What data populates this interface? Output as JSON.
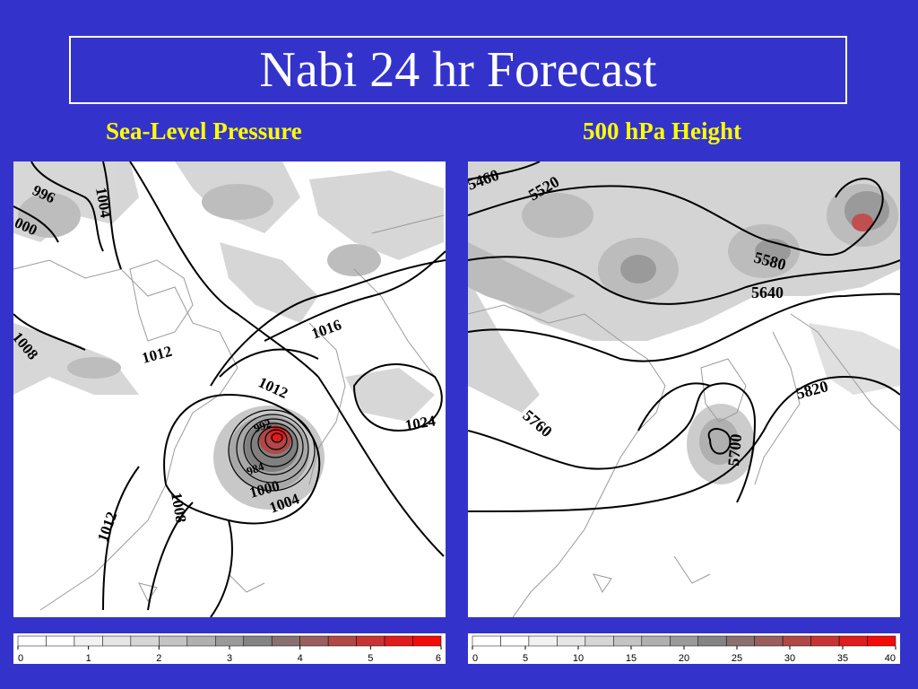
{
  "title": "Nabi 24 hr Forecast",
  "left_panel": {
    "subtitle": "Sea-Level Pressure",
    "contour_labels": [
      "996",
      "1004",
      "000",
      "1008",
      "1012",
      "1016",
      "1012",
      "1024",
      "1008",
      "1012",
      "1000",
      "1004",
      "992",
      "984"
    ],
    "colorbar": {
      "ticks": [
        "0",
        "1",
        "2",
        "3",
        "4",
        "5",
        "6"
      ],
      "colors": [
        "#ffffff",
        "#ffffff",
        "#f2f2f2",
        "#e6e6e6",
        "#d6d6d6",
        "#c4c4c4",
        "#b0b0b0",
        "#9a9a9a",
        "#848484",
        "#8a7070",
        "#9a5e5e",
        "#b04848",
        "#c83434",
        "#e01c1c",
        "#f50a0a"
      ]
    }
  },
  "right_panel": {
    "subtitle": "500 hPa Height",
    "contour_labels": [
      "5460",
      "5520",
      "5580",
      "5640",
      "5760",
      "5700",
      "5820"
    ],
    "colorbar": {
      "ticks": [
        "0",
        "5",
        "10",
        "15",
        "20",
        "25",
        "30",
        "35",
        "40"
      ],
      "colors": [
        "#ffffff",
        "#ffffff",
        "#f2f2f2",
        "#e6e6e6",
        "#d6d6d6",
        "#c4c4c4",
        "#b0b0b0",
        "#9a9a9a",
        "#848484",
        "#8a7070",
        "#9a5e5e",
        "#b04848",
        "#c83434",
        "#e01c1c",
        "#f50a0a"
      ]
    }
  }
}
